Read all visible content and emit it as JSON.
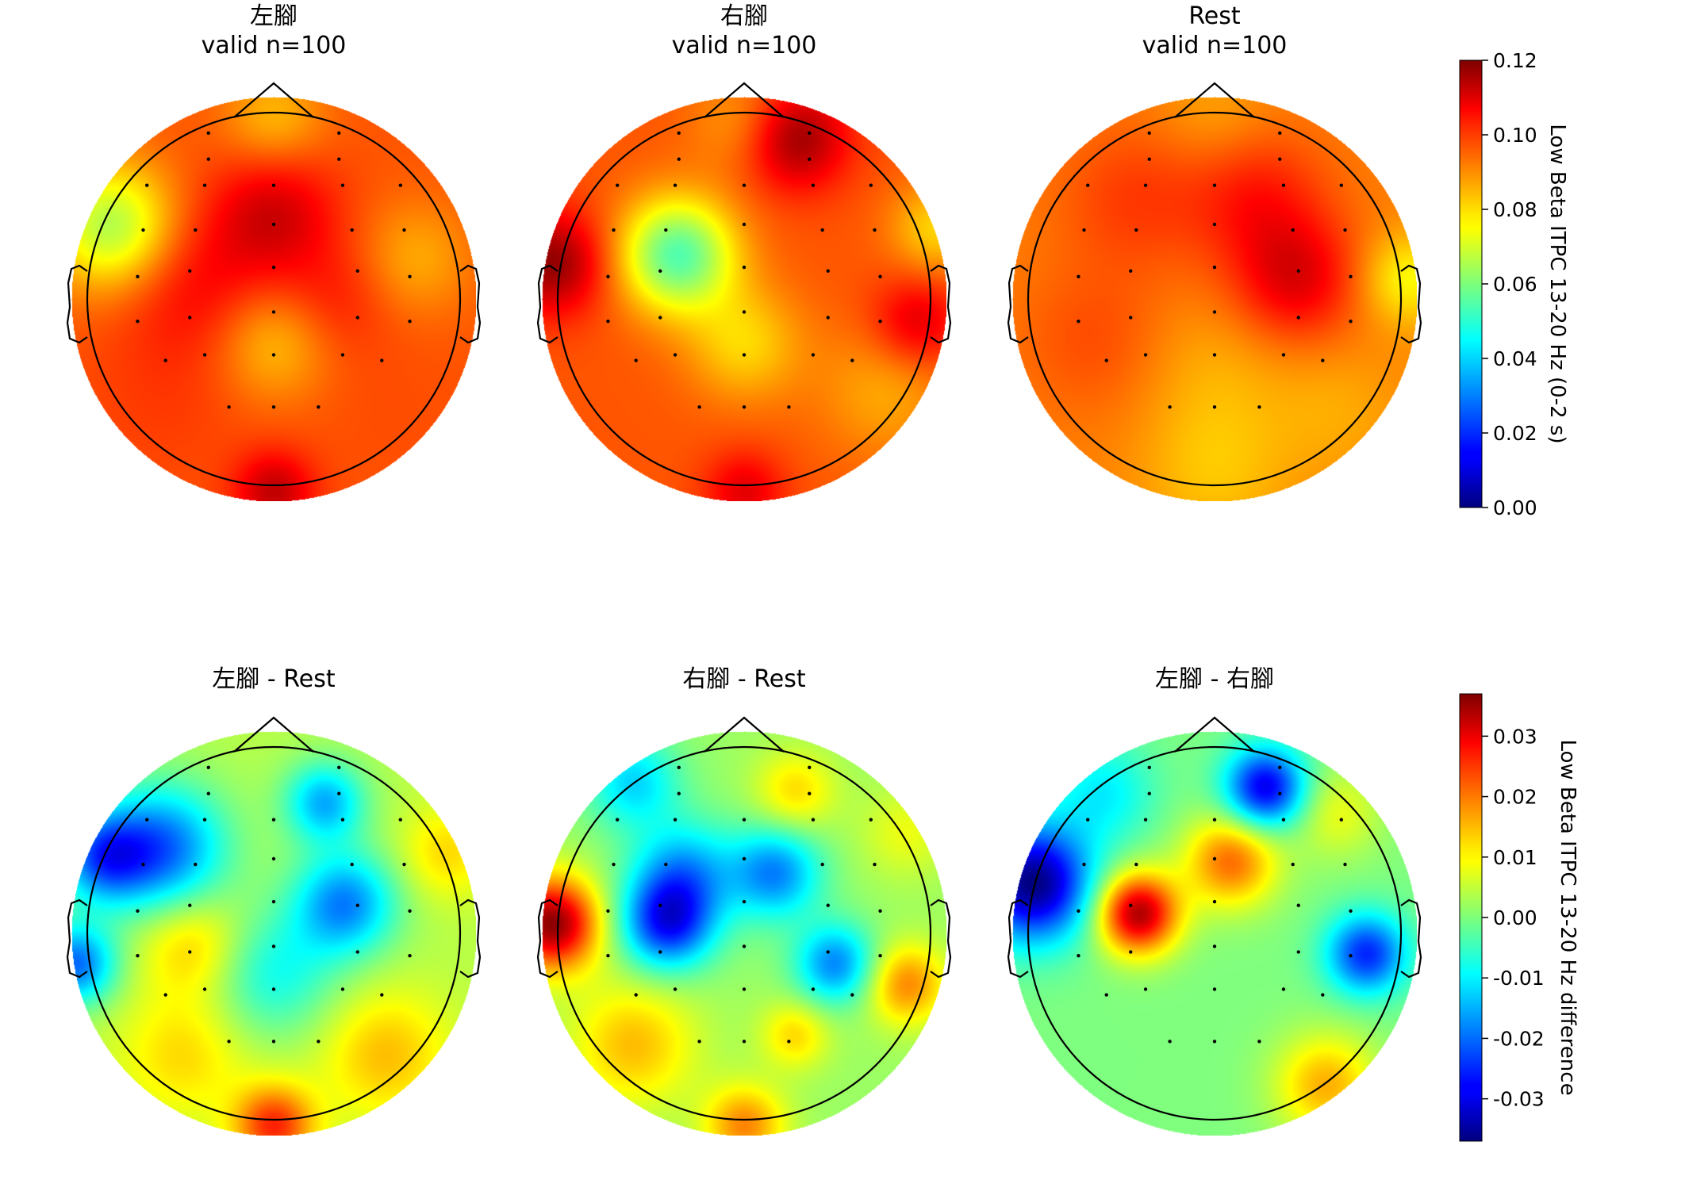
{
  "chart_data": [
    {
      "type": "heatmap",
      "subtype": "eeg-topomap",
      "title": "左腳",
      "subtitle": "valid n=100",
      "colormap": "jet",
      "vmin": 0.0,
      "vmax": 0.12,
      "colorbar": "top",
      "blobs": [
        {
          "x": 0.0,
          "y": 0.42,
          "v": 0.11,
          "s": 0.22
        },
        {
          "x": -0.4,
          "y": 0.08,
          "v": 0.105,
          "s": 0.26
        },
        {
          "x": 0.3,
          "y": 0.0,
          "v": 0.102,
          "s": 0.2
        },
        {
          "x": 0.0,
          "y": -0.22,
          "v": 0.082,
          "s": 0.2
        },
        {
          "x": -0.8,
          "y": 0.36,
          "v": 0.065,
          "s": 0.22
        },
        {
          "x": 0.0,
          "y": 0.9,
          "v": 0.083,
          "s": 0.18
        },
        {
          "x": 0.7,
          "y": 0.2,
          "v": 0.085,
          "s": 0.2
        },
        {
          "x": 0.0,
          "y": -0.95,
          "v": 0.112,
          "s": 0.14
        },
        {
          "x": -0.55,
          "y": -0.5,
          "v": 0.098,
          "s": 0.3
        },
        {
          "x": 0.55,
          "y": -0.55,
          "v": 0.096,
          "s": 0.3
        }
      ],
      "baseline": 0.095
    },
    {
      "type": "heatmap",
      "subtype": "eeg-topomap",
      "title": "右腳",
      "subtitle": "valid n=100",
      "colormap": "jet",
      "vmin": 0.0,
      "vmax": 0.12,
      "colorbar": "top",
      "blobs": [
        {
          "x": 0.25,
          "y": 0.8,
          "v": 0.118,
          "s": 0.18
        },
        {
          "x": -0.95,
          "y": 0.18,
          "v": 0.118,
          "s": 0.18
        },
        {
          "x": -0.33,
          "y": 0.22,
          "v": 0.055,
          "s": 0.2
        },
        {
          "x": 0.85,
          "y": -0.12,
          "v": 0.11,
          "s": 0.16
        },
        {
          "x": 0.0,
          "y": -0.22,
          "v": 0.08,
          "s": 0.2
        },
        {
          "x": 0.0,
          "y": 0.88,
          "v": 0.085,
          "s": 0.18
        },
        {
          "x": 0.7,
          "y": -0.45,
          "v": 0.085,
          "s": 0.24
        },
        {
          "x": 0.95,
          "y": 0.35,
          "v": 0.08,
          "s": 0.16
        },
        {
          "x": 0.0,
          "y": -0.95,
          "v": 0.108,
          "s": 0.14
        }
      ],
      "baseline": 0.095
    },
    {
      "type": "heatmap",
      "subtype": "eeg-topomap",
      "title": "Rest",
      "subtitle": "valid n=100",
      "colormap": "jet",
      "vmin": 0.0,
      "vmax": 0.12,
      "colorbar": "top",
      "blobs": [
        {
          "x": 0.4,
          "y": 0.1,
          "v": 0.108,
          "s": 0.22
        },
        {
          "x": 0.2,
          "y": 0.5,
          "v": 0.102,
          "s": 0.24
        },
        {
          "x": -0.4,
          "y": 0.5,
          "v": 0.098,
          "s": 0.26
        },
        {
          "x": -0.6,
          "y": -0.2,
          "v": 0.096,
          "s": 0.26
        },
        {
          "x": 0.0,
          "y": -0.35,
          "v": 0.085,
          "s": 0.26
        },
        {
          "x": 0.0,
          "y": -0.85,
          "v": 0.082,
          "s": 0.26
        },
        {
          "x": 0.95,
          "y": 0.1,
          "v": 0.075,
          "s": 0.16
        },
        {
          "x": 0.0,
          "y": 0.9,
          "v": 0.085,
          "s": 0.2
        },
        {
          "x": 0.6,
          "y": -0.55,
          "v": 0.085,
          "s": 0.24
        }
      ],
      "baseline": 0.09
    },
    {
      "type": "heatmap",
      "subtype": "eeg-topomap",
      "title": "左腳 - Rest",
      "subtitle": "",
      "colormap": "jet",
      "vmin": -0.037,
      "vmax": 0.037,
      "colorbar": "bottom",
      "blobs": [
        {
          "x": -0.55,
          "y": 0.42,
          "v": -0.02,
          "s": 0.22
        },
        {
          "x": -0.85,
          "y": 0.38,
          "v": -0.018,
          "s": 0.16
        },
        {
          "x": 0.35,
          "y": 0.15,
          "v": -0.018,
          "s": 0.18
        },
        {
          "x": 0.25,
          "y": 0.65,
          "v": -0.015,
          "s": 0.14
        },
        {
          "x": -0.98,
          "y": -0.15,
          "v": -0.02,
          "s": 0.14
        },
        {
          "x": -0.4,
          "y": -0.05,
          "v": 0.014,
          "s": 0.18
        },
        {
          "x": 0.0,
          "y": -0.95,
          "v": 0.025,
          "s": 0.14
        },
        {
          "x": -0.45,
          "y": -0.6,
          "v": 0.012,
          "s": 0.22
        },
        {
          "x": 0.55,
          "y": -0.6,
          "v": 0.014,
          "s": 0.22
        },
        {
          "x": 0.85,
          "y": 0.4,
          "v": 0.012,
          "s": 0.16
        },
        {
          "x": 0.0,
          "y": -0.2,
          "v": -0.008,
          "s": 0.22
        }
      ],
      "baseline": 0.004
    },
    {
      "type": "heatmap",
      "subtype": "eeg-topomap",
      "title": "右腳 - Rest",
      "subtitle": "",
      "colormap": "jet",
      "vmin": -0.037,
      "vmax": 0.037,
      "colorbar": "bottom",
      "blobs": [
        {
          "x": -0.95,
          "y": 0.05,
          "v": 0.036,
          "s": 0.16
        },
        {
          "x": -0.38,
          "y": 0.05,
          "v": -0.025,
          "s": 0.16
        },
        {
          "x": -0.3,
          "y": 0.3,
          "v": -0.015,
          "s": 0.18
        },
        {
          "x": 0.15,
          "y": 0.3,
          "v": -0.018,
          "s": 0.16
        },
        {
          "x": 0.45,
          "y": -0.15,
          "v": -0.018,
          "s": 0.14
        },
        {
          "x": -0.55,
          "y": 0.75,
          "v": -0.012,
          "s": 0.16
        },
        {
          "x": 0.25,
          "y": 0.7,
          "v": 0.012,
          "s": 0.14
        },
        {
          "x": 0.8,
          "y": -0.25,
          "v": 0.018,
          "s": 0.14
        },
        {
          "x": -0.55,
          "y": -0.55,
          "v": 0.014,
          "s": 0.22
        },
        {
          "x": 0.0,
          "y": -0.95,
          "v": 0.018,
          "s": 0.14
        },
        {
          "x": 0.25,
          "y": -0.5,
          "v": 0.012,
          "s": 0.12
        },
        {
          "x": 0.8,
          "y": 0.5,
          "v": 0.008,
          "s": 0.16
        }
      ],
      "baseline": 0.002
    },
    {
      "type": "heatmap",
      "subtype": "eeg-topomap",
      "title": "左腳 - 右腳",
      "subtitle": "",
      "colormap": "jet",
      "vmin": -0.037,
      "vmax": 0.037,
      "colorbar": "bottom",
      "blobs": [
        {
          "x": -0.9,
          "y": 0.25,
          "v": -0.037,
          "s": 0.2
        },
        {
          "x": -0.38,
          "y": 0.1,
          "v": 0.034,
          "s": 0.14
        },
        {
          "x": 0.08,
          "y": 0.36,
          "v": 0.02,
          "s": 0.16
        },
        {
          "x": 0.25,
          "y": 0.72,
          "v": -0.03,
          "s": 0.14
        },
        {
          "x": 0.75,
          "y": -0.1,
          "v": -0.025,
          "s": 0.14
        },
        {
          "x": -0.55,
          "y": 0.7,
          "v": -0.01,
          "s": 0.18
        },
        {
          "x": 0.55,
          "y": -0.75,
          "v": 0.015,
          "s": 0.18
        },
        {
          "x": 0.6,
          "y": 0.6,
          "v": 0.008,
          "s": 0.16
        }
      ],
      "baseline": 0.0
    }
  ],
  "colorbars": [
    {
      "label": "Low Beta ITPC 13-20 Hz (0-2 s)",
      "vmin": 0.0,
      "vmax": 0.12,
      "ticks": [
        "0.00",
        "0.02",
        "0.04",
        "0.06",
        "0.08",
        "0.10",
        "0.12"
      ],
      "tick_values": [
        0.0,
        0.02,
        0.04,
        0.06,
        0.08,
        0.1,
        0.12
      ]
    },
    {
      "label": "Low Beta ITPC 13-20 Hz difference",
      "vmin": -0.037,
      "vmax": 0.037,
      "ticks": [
        "-0.03",
        "-0.02",
        "-0.01",
        "0.00",
        "0.01",
        "0.02",
        "0.03"
      ],
      "tick_values": [
        -0.03,
        -0.02,
        -0.01,
        0.0,
        0.01,
        0.02,
        0.03
      ]
    }
  ],
  "electrodes": [
    [
      -0.35,
      0.89
    ],
    [
      0.35,
      0.89
    ],
    [
      -0.35,
      0.75
    ],
    [
      0.35,
      0.75
    ],
    [
      -0.68,
      0.61
    ],
    [
      -0.37,
      0.61
    ],
    [
      0.0,
      0.61
    ],
    [
      0.37,
      0.61
    ],
    [
      0.68,
      0.61
    ],
    [
      -0.7,
      0.37
    ],
    [
      -0.42,
      0.37
    ],
    [
      0.0,
      0.4
    ],
    [
      0.42,
      0.37
    ],
    [
      0.7,
      0.37
    ],
    [
      -0.73,
      0.12
    ],
    [
      -0.45,
      0.15
    ],
    [
      0.0,
      0.17
    ],
    [
      0.45,
      0.15
    ],
    [
      0.73,
      0.12
    ],
    [
      -0.73,
      -0.12
    ],
    [
      -0.45,
      -0.1
    ],
    [
      0.0,
      -0.07
    ],
    [
      0.45,
      -0.1
    ],
    [
      0.73,
      -0.12
    ],
    [
      -0.58,
      -0.33
    ],
    [
      -0.37,
      -0.3
    ],
    [
      0.0,
      -0.3
    ],
    [
      0.37,
      -0.3
    ],
    [
      0.58,
      -0.33
    ],
    [
      -0.24,
      -0.58
    ],
    [
      0.0,
      -0.58
    ],
    [
      0.24,
      -0.58
    ]
  ]
}
